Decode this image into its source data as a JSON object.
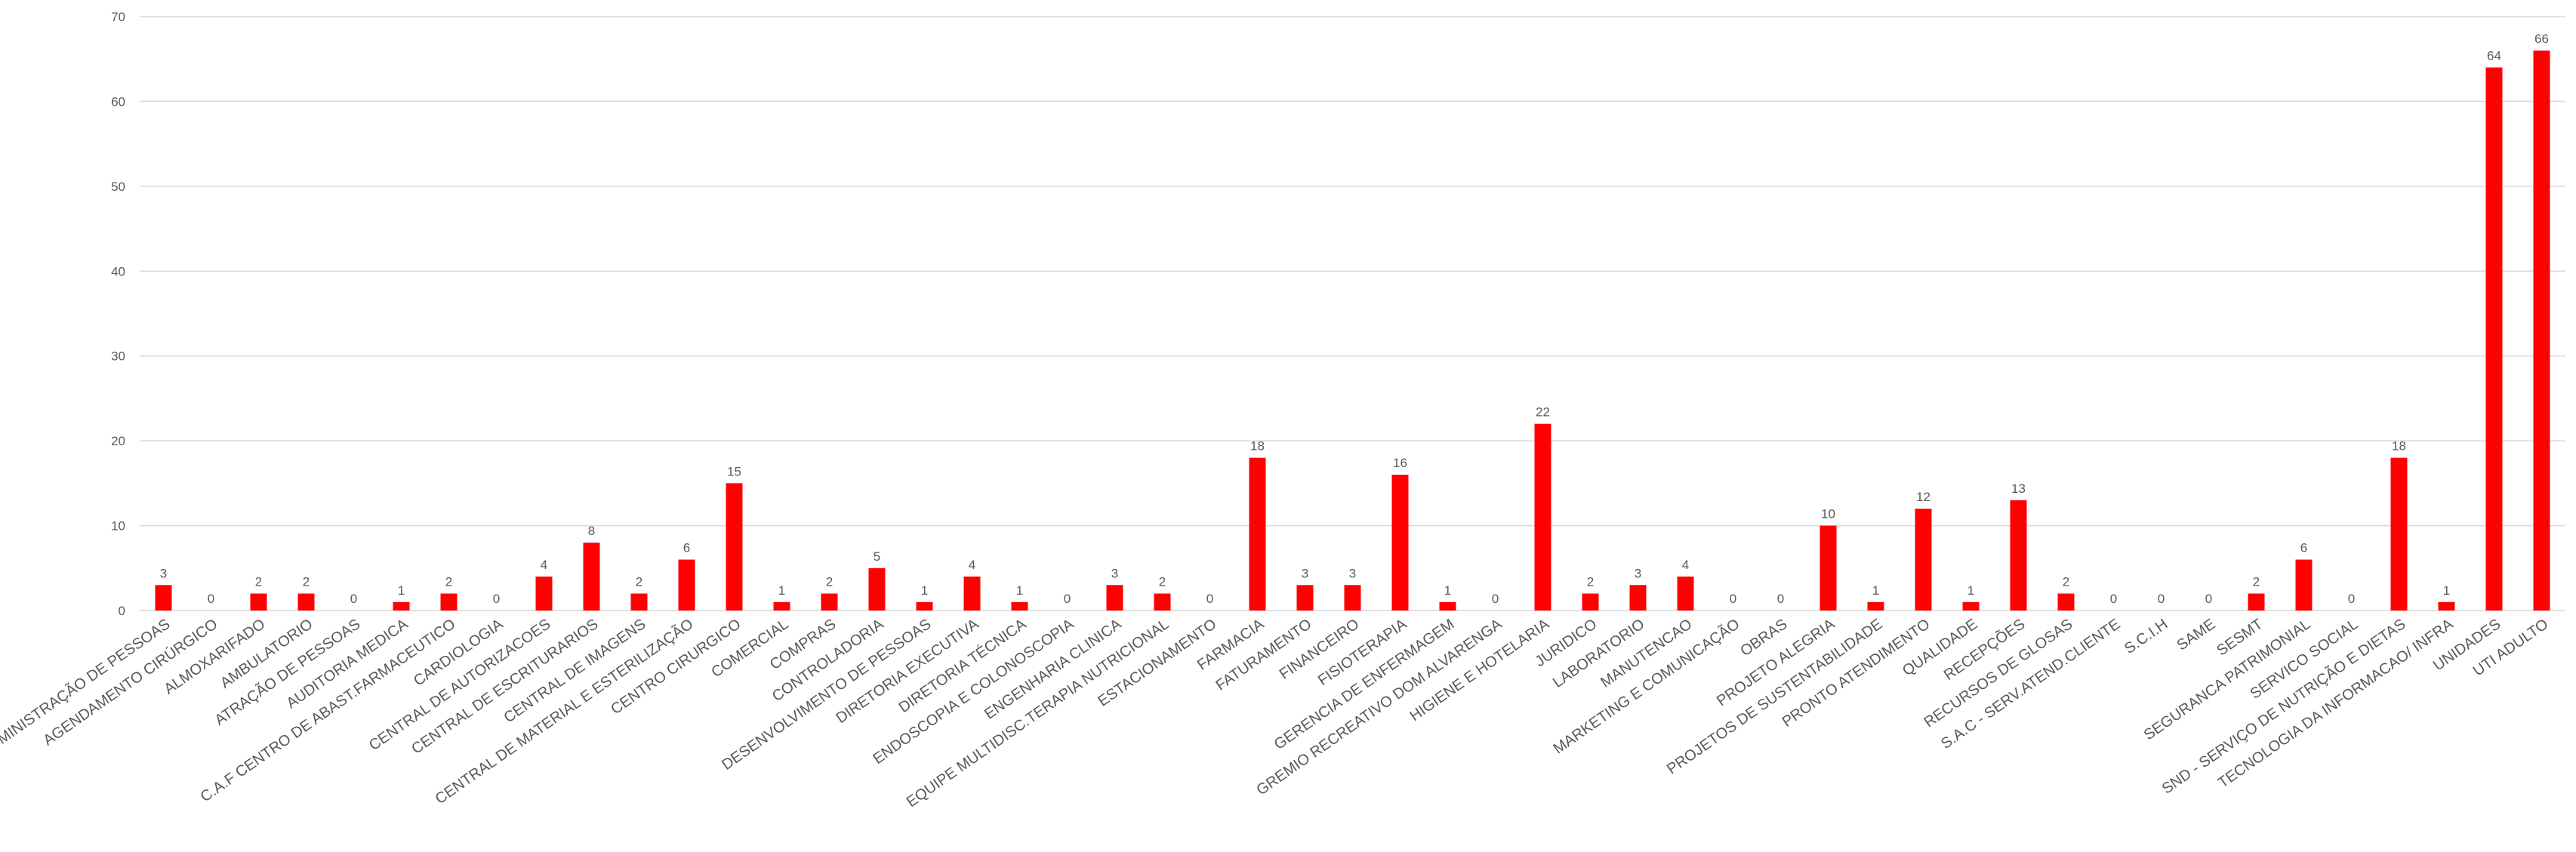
{
  "chart_data": {
    "type": "bar",
    "title": "",
    "xlabel": "",
    "ylabel": "",
    "ylim": [
      0,
      70
    ],
    "yticks": [
      0,
      10,
      20,
      30,
      40,
      50,
      60,
      70
    ],
    "grid": true,
    "legend": "none",
    "bar_color": "#ff0000",
    "categories": [
      "ADMINISTRAÇÃO DE PESSOAS",
      "AGENDAMENTO CIRÚRGICO",
      "ALMOXARIFADO",
      "AMBULATORIO",
      "ATRAÇÃO DE PESSOAS",
      "AUDITORIA MEDICA",
      "C.A.F CENTRO DE ABAST.FARMACEUTICO",
      "CARDIOLOGIA",
      "CENTRAL DE AUTORIZACOES",
      "CENTRAL DE ESCRITURARIOS",
      "CENTRAL DE IMAGENS",
      "CENTRAL DE MATERIAL E ESTERILIZAÇÃO",
      "CENTRO CIRURGICO",
      "COMERCIAL",
      "COMPRAS",
      "CONTROLADORIA",
      "DESENVOLVIMENTO DE PESSOAS",
      "DIRETORIA EXECUTIVA",
      "DIRETORIA TÉCNICA",
      "ENDOSCOPIA E COLONOSCOPIA",
      "ENGENHARIA CLINICA",
      "EQUIPE MULTIDISC.TERAPIA NUTRICIONAL",
      "ESTACIONAMENTO",
      "FARMACIA",
      "FATURAMENTO",
      "FINANCEIRO",
      "FISIOTERAPIA",
      "GERENCIA DE ENFERMAGEM",
      "GREMIO RECREATIVO DOM ALVARENGA",
      "HIGIENE E HOTELARIA",
      "JURIDICO",
      "LABORATORIO",
      "MANUTENCAO",
      "MARKETING E COMUNICAÇÃO",
      "OBRAS",
      "PROJETO ALEGRIA",
      "PROJETOS DE SUSTENTABILIDADE",
      "PRONTO ATENDIMENTO",
      "QUALIDADE",
      "RECEPÇÕES",
      "RECURSOS DE GLOSAS",
      "S.A.C - SERV.ATEND.CLIENTE",
      "S.C.I.H",
      "SAME",
      "SESMT",
      "SEGURANCA PATRIMONIAL",
      "SERVICO SOCIAL",
      "SND - SERVIÇO DE NUTRIÇÃO E DIETAS",
      "TECNOLOGIA DA INFORMACAO/ INFRA",
      "UNIDADES",
      "UTI ADULTO"
    ],
    "values": [
      3,
      0,
      2,
      2,
      0,
      1,
      2,
      0,
      4,
      8,
      2,
      6,
      15,
      1,
      2,
      5,
      1,
      4,
      1,
      0,
      3,
      2,
      0,
      18,
      3,
      3,
      16,
      1,
      0,
      22,
      2,
      3,
      4,
      0,
      0,
      10,
      1,
      12,
      1,
      13,
      2,
      0,
      0,
      0,
      2,
      6,
      0,
      18,
      1,
      64,
      66
    ]
  }
}
